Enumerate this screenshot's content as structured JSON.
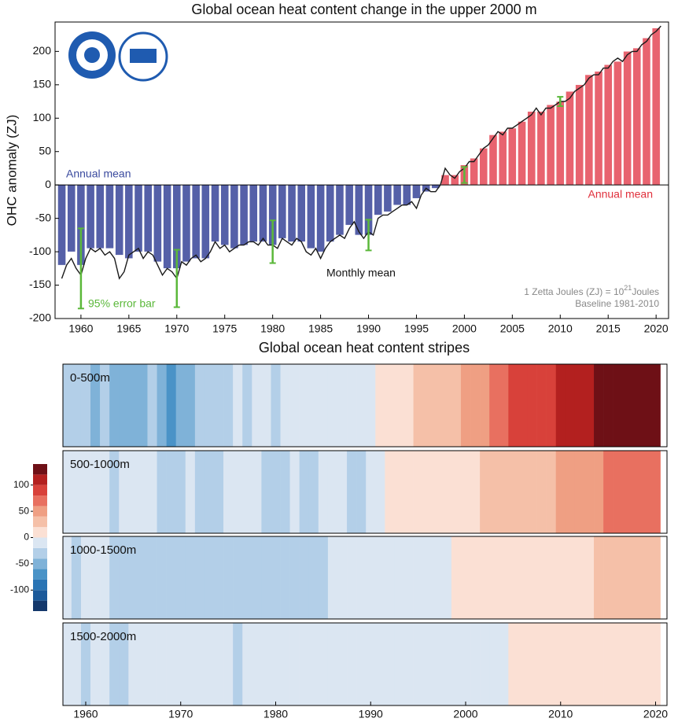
{
  "chart_data": [
    {
      "type": "bar",
      "title": "Global ocean heat content change in the upper 2000 m",
      "y_label": "OHC anomaly (ZJ)",
      "x": [
        1958,
        1959,
        1960,
        1961,
        1962,
        1963,
        1964,
        1965,
        1966,
        1967,
        1968,
        1969,
        1970,
        1971,
        1972,
        1973,
        1974,
        1975,
        1976,
        1977,
        1978,
        1979,
        1980,
        1981,
        1982,
        1983,
        1984,
        1985,
        1986,
        1987,
        1988,
        1989,
        1990,
        1991,
        1992,
        1993,
        1994,
        1995,
        1996,
        1997,
        1998,
        1999,
        2000,
        2001,
        2002,
        2003,
        2004,
        2005,
        2006,
        2007,
        2008,
        2009,
        2010,
        2011,
        2012,
        2013,
        2014,
        2015,
        2016,
        2017,
        2018,
        2019,
        2020
      ],
      "values": [
        -120,
        -100,
        -120,
        -95,
        -95,
        -95,
        -105,
        -110,
        -100,
        -100,
        -115,
        -125,
        -125,
        -115,
        -110,
        -110,
        -85,
        -90,
        -95,
        -90,
        -85,
        -85,
        -90,
        -80,
        -85,
        -85,
        -95,
        -100,
        -85,
        -75,
        -60,
        -75,
        -75,
        -45,
        -40,
        -30,
        -30,
        -20,
        -10,
        -5,
        15,
        15,
        30,
        40,
        55,
        75,
        80,
        85,
        95,
        110,
        110,
        120,
        125,
        140,
        150,
        165,
        170,
        180,
        185,
        200,
        205,
        220,
        235
      ],
      "negative_color": "#5560a8",
      "positive_color": "#e8636f",
      "line": {
        "color": "#1a1a1a",
        "x": [
          1958,
          1958.5,
          1959,
          1959.5,
          1960,
          1960.5,
          1961,
          1961.5,
          1962,
          1962.5,
          1963,
          1963.5,
          1964,
          1964.5,
          1965,
          1965.5,
          1966,
          1966.5,
          1967,
          1967.5,
          1968,
          1968.5,
          1969,
          1969.5,
          1970,
          1970.5,
          1971,
          1971.5,
          1972,
          1972.5,
          1973,
          1973.5,
          1974,
          1974.5,
          1975,
          1975.5,
          1976,
          1976.5,
          1977,
          1977.5,
          1978,
          1978.5,
          1979,
          1979.5,
          1980,
          1980.5,
          1981,
          1981.5,
          1982,
          1982.5,
          1983,
          1983.5,
          1984,
          1984.5,
          1985,
          1985.5,
          1986,
          1986.5,
          1987,
          1987.5,
          1988,
          1988.5,
          1989,
          1989.5,
          1990,
          1990.5,
          1991,
          1991.5,
          1992,
          1992.5,
          1993,
          1993.5,
          1994,
          1994.5,
          1995,
          1995.5,
          1996,
          1996.5,
          1997,
          1997.5,
          1998,
          1998.5,
          1999,
          1999.5,
          2000,
          2000.5,
          2001,
          2001.5,
          2002,
          2002.5,
          2003,
          2003.5,
          2004,
          2004.5,
          2005,
          2005.5,
          2006,
          2006.5,
          2007,
          2007.5,
          2008,
          2008.5,
          2009,
          2009.5,
          2010,
          2010.5,
          2011,
          2011.5,
          2012,
          2012.5,
          2013,
          2013.5,
          2014,
          2014.5,
          2015,
          2015.5,
          2016,
          2016.5,
          2017,
          2017.5,
          2018,
          2018.5,
          2019,
          2019.5,
          2020,
          2020.5
        ],
        "values": [
          -140,
          -120,
          -110,
          -125,
          -135,
          -110,
          -95,
          -100,
          -95,
          -105,
          -100,
          -110,
          -140,
          -130,
          -105,
          -100,
          -95,
          -110,
          -100,
          -105,
          -120,
          -135,
          -125,
          -130,
          -140,
          -115,
          -120,
          -110,
          -105,
          -115,
          -110,
          -100,
          -85,
          -95,
          -90,
          -100,
          -95,
          -90,
          -90,
          -85,
          -85,
          -90,
          -80,
          -90,
          -90,
          -95,
          -80,
          -85,
          -90,
          -80,
          -85,
          -100,
          -105,
          -95,
          -110,
          -95,
          -85,
          -80,
          -75,
          -80,
          -65,
          -55,
          -70,
          -80,
          -70,
          -75,
          -50,
          -45,
          -45,
          -40,
          -35,
          -30,
          -30,
          -25,
          -35,
          -15,
          -5,
          -10,
          -10,
          0,
          25,
          15,
          10,
          20,
          25,
          35,
          35,
          45,
          55,
          60,
          70,
          80,
          75,
          85,
          85,
          90,
          95,
          100,
          105,
          115,
          105,
          115,
          115,
          120,
          125,
          125,
          130,
          140,
          145,
          150,
          160,
          165,
          165,
          175,
          175,
          185,
          190,
          185,
          195,
          200,
          200,
          210,
          215,
          225,
          230,
          238
        ]
      },
      "error_bars": {
        "color": "#5bb83a",
        "x": [
          1960,
          1970,
          1980,
          1990,
          2000,
          2010
        ],
        "values": [
          -125,
          -140,
          -85,
          -75,
          15,
          125
        ],
        "errors": [
          60,
          43,
          32,
          23,
          12,
          7
        ]
      },
      "annotations": [
        {
          "text": "Annual mean",
          "color": "#3a4a9e"
        },
        {
          "text": "Annual mean",
          "color": "#e0303c"
        },
        {
          "text": "Monthly mean",
          "color": "#111111"
        },
        {
          "text": "95% error bar",
          "color": "#5bb83a"
        }
      ],
      "unit_note": {
        "text": "1 Zetta Joules (ZJ) = 10",
        "superscript": "21",
        "after": "Joules"
      },
      "baseline_note": "Baseline 1981-2010",
      "xlim": [
        1957.3,
        2021.3
      ],
      "xticks": [
        1960,
        1965,
        1970,
        1975,
        1980,
        1985,
        1990,
        1995,
        2000,
        2005,
        2010,
        2015,
        2020
      ],
      "ylim": [
        -200,
        244
      ],
      "yticks": [
        -200,
        -150,
        -100,
        -50,
        0,
        50,
        100,
        150,
        200
      ]
    },
    {
      "type": "stripes",
      "title": "Global ocean heat content stripes",
      "x": [
        1958,
        1959,
        1960,
        1961,
        1962,
        1963,
        1964,
        1965,
        1966,
        1967,
        1968,
        1969,
        1970,
        1971,
        1972,
        1973,
        1974,
        1975,
        1976,
        1977,
        1978,
        1979,
        1980,
        1981,
        1982,
        1983,
        1984,
        1985,
        1986,
        1987,
        1988,
        1989,
        1990,
        1991,
        1992,
        1993,
        1994,
        1995,
        1996,
        1997,
        1998,
        1999,
        2000,
        2001,
        2002,
        2003,
        2004,
        2005,
        2006,
        2007,
        2008,
        2009,
        2010,
        2011,
        2012,
        2013,
        2014,
        2015,
        2016,
        2017,
        2018,
        2019,
        2020
      ],
      "xlim": [
        1957.6,
        2021.2
      ],
      "xticks": [
        1960,
        1970,
        1980,
        1990,
        2000,
        2010,
        2020
      ],
      "layers": [
        {
          "name": "0-500m",
          "values": [
            -30,
            -25,
            -35,
            -45,
            -40,
            -50,
            -60,
            -55,
            -45,
            -40,
            -55,
            -65,
            -60,
            -45,
            -40,
            -35,
            -30,
            -25,
            -20,
            -25,
            -20,
            -15,
            -25,
            -20,
            -15,
            -10,
            -15,
            -20,
            -15,
            -5,
            -10,
            -15,
            -5,
            10,
            15,
            5,
            15,
            25,
            20,
            25,
            35,
            30,
            40,
            45,
            55,
            65,
            75,
            80,
            85,
            90,
            85,
            95,
            100,
            110,
            105,
            115,
            125,
            130,
            125,
            130,
            135,
            135,
            138
          ]
        },
        {
          "name": "500-1000m",
          "values": [
            -15,
            -10,
            -10,
            -20,
            -15,
            -25,
            -20,
            -20,
            -15,
            -15,
            -25,
            -30,
            -25,
            -20,
            -25,
            -25,
            -30,
            -15,
            -15,
            -20,
            -10,
            -25,
            -35,
            -25,
            -20,
            -30,
            -25,
            -15,
            -10,
            -15,
            -25,
            -30,
            -20,
            -10,
            5,
            5,
            10,
            15,
            10,
            12,
            15,
            14,
            16,
            18,
            25,
            28,
            30,
            32,
            30,
            35,
            34,
            38,
            40,
            42,
            45,
            50,
            55,
            62,
            65,
            70,
            65,
            72,
            75
          ]
        },
        {
          "name": "1000-1500m",
          "values": [
            -15,
            -25,
            -15,
            -15,
            -15,
            -25,
            -25,
            -25,
            -25,
            -25,
            -25,
            -25,
            -25,
            -25,
            -25,
            -25,
            -25,
            -25,
            -25,
            -25,
            -25,
            -25,
            -25,
            -25,
            -25,
            -25,
            -25,
            -25,
            -15,
            -15,
            -15,
            -15,
            -15,
            -15,
            -15,
            -15,
            -15,
            -15,
            -15,
            -15,
            -10,
            5,
            10,
            10,
            12,
            15,
            15,
            15,
            15,
            15,
            15,
            15,
            15,
            15,
            18,
            15,
            25,
            25,
            25,
            25,
            25,
            28,
            28
          ]
        },
        {
          "name": "1500-2000m",
          "values": [
            -10,
            -10,
            -25,
            -10,
            -10,
            -25,
            -25,
            -10,
            -10,
            -10,
            -10,
            -10,
            -10,
            -10,
            -10,
            -10,
            -10,
            -10,
            -25,
            -10,
            -10,
            -10,
            -10,
            -10,
            -10,
            -10,
            -10,
            -10,
            -10,
            -10,
            -10,
            -10,
            -10,
            -10,
            -10,
            -10,
            -10,
            -10,
            -10,
            -10,
            -10,
            -10,
            -10,
            -10,
            -10,
            -10,
            -10,
            5,
            8,
            8,
            8,
            8,
            10,
            10,
            10,
            10,
            10,
            12,
            12,
            12,
            12,
            12,
            12
          ]
        }
      ],
      "colorbar": {
        "bins": [
          -140,
          -120,
          -100,
          -80,
          -60,
          -40,
          -20,
          0,
          20,
          40,
          60,
          80,
          100,
          120,
          140
        ],
        "colors": [
          "#14386b",
          "#1c5a9a",
          "#2a74b4",
          "#4a93c7",
          "#7fb2d8",
          "#b3cfe8",
          "#dbe6f2",
          "#fbe0d4",
          "#f5c0a8",
          "#ef9f83",
          "#e87060",
          "#d8413a",
          "#b3201f",
          "#6e1016"
        ],
        "ticks": [
          -100,
          -50,
          0,
          50,
          100
        ]
      }
    }
  ]
}
